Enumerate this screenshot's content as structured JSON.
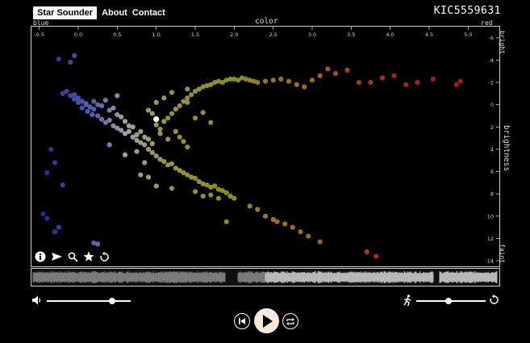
{
  "nav": {
    "brand": "Star Sounder",
    "about": "About",
    "contact": "Contact"
  },
  "star_id": "KIC5559631",
  "axes": {
    "x_title": "color",
    "x_left": "blue",
    "x_right": "red",
    "y_title": "brightness",
    "y_top": "bright",
    "y_bottom": "faint",
    "x_ticks": [
      "-0.5",
      "0.0",
      "0.5",
      "1.0",
      "1.5",
      "2.0",
      "2.5",
      "3.0",
      "3.5",
      "4.0",
      "4.5",
      "5.0"
    ],
    "y_ticks": [
      "-6",
      "-4",
      "-2",
      "0",
      "2",
      "4",
      "6",
      "8",
      "10",
      "12",
      "14"
    ]
  },
  "chart_data": {
    "type": "scatter",
    "xlabel": "color",
    "ylabel": "brightness",
    "xlim": [
      -0.6,
      5.4
    ],
    "ylim": [
      -7,
      14.5
    ],
    "y_inverted": true,
    "highlight_point": {
      "x": 1.0,
      "y": 1.3
    },
    "points": [
      [
        -0.25,
        -4.1
      ],
      [
        -0.1,
        -3.8
      ],
      [
        -0.05,
        -4.4
      ],
      [
        -0.3,
        5.2
      ],
      [
        -0.4,
        6.1
      ],
      [
        -0.35,
        4.0
      ],
      [
        -0.2,
        7.2
      ],
      [
        -0.45,
        9.8
      ],
      [
        -0.3,
        11.4
      ],
      [
        -0.25,
        11.0
      ],
      [
        -0.4,
        10.2
      ],
      [
        0.2,
        12.4
      ],
      [
        0.25,
        12.5
      ],
      [
        -0.15,
        -1.2
      ],
      [
        -0.2,
        -1.0
      ],
      [
        -0.1,
        -0.8
      ],
      [
        -0.05,
        -0.5
      ],
      [
        0.0,
        -0.6
      ],
      [
        0.05,
        -0.3
      ],
      [
        0.1,
        -0.1
      ],
      [
        0.15,
        0.2
      ],
      [
        0.2,
        0.4
      ],
      [
        0.1,
        0.0
      ],
      [
        0.0,
        -0.2
      ],
      [
        -0.05,
        -0.9
      ],
      [
        0.05,
        0.3
      ],
      [
        0.12,
        0.6
      ],
      [
        0.18,
        0.9
      ],
      [
        0.25,
        1.0
      ],
      [
        0.3,
        1.3
      ],
      [
        0.35,
        1.6
      ],
      [
        0.4,
        1.4
      ],
      [
        0.45,
        1.9
      ],
      [
        0.5,
        2.1
      ],
      [
        0.55,
        2.3
      ],
      [
        0.6,
        2.6
      ],
      [
        0.65,
        2.4
      ],
      [
        0.7,
        2.9
      ],
      [
        0.75,
        3.2
      ],
      [
        0.8,
        3.4
      ],
      [
        0.85,
        3.6
      ],
      [
        0.9,
        4.0
      ],
      [
        0.95,
        4.3
      ],
      [
        1.0,
        4.6
      ],
      [
        1.05,
        4.9
      ],
      [
        1.1,
        5.1
      ],
      [
        1.15,
        5.4
      ],
      [
        1.2,
        5.3
      ],
      [
        1.25,
        5.7
      ],
      [
        1.3,
        5.9
      ],
      [
        1.35,
        6.1
      ],
      [
        1.4,
        6.3
      ],
      [
        1.45,
        6.5
      ],
      [
        1.5,
        6.6
      ],
      [
        1.55,
        6.9
      ],
      [
        1.6,
        7.1
      ],
      [
        1.65,
        7.2
      ],
      [
        1.7,
        7.4
      ],
      [
        1.75,
        7.3
      ],
      [
        1.8,
        7.6
      ],
      [
        1.85,
        7.7
      ],
      [
        1.9,
        7.9
      ],
      [
        1.95,
        8.2
      ],
      [
        2.0,
        8.4
      ],
      [
        2.2,
        9.1
      ],
      [
        2.3,
        9.4
      ],
      [
        2.4,
        10.0
      ],
      [
        2.5,
        10.3
      ],
      [
        2.55,
        10.5
      ],
      [
        2.65,
        10.7
      ],
      [
        2.75,
        11.0
      ],
      [
        2.85,
        11.4
      ],
      [
        2.95,
        11.8
      ],
      [
        3.1,
        12.3
      ],
      [
        3.7,
        13.2
      ],
      [
        3.82,
        13.6
      ],
      [
        0.2,
        -0.3
      ],
      [
        0.3,
        0.1
      ],
      [
        0.4,
        0.5
      ],
      [
        0.5,
        0.9
      ],
      [
        0.45,
        0.3
      ],
      [
        0.6,
        1.5
      ],
      [
        0.7,
        2.0
      ],
      [
        0.8,
        2.4
      ],
      [
        0.85,
        2.9
      ],
      [
        0.9,
        3.1
      ],
      [
        0.65,
        1.9
      ],
      [
        0.75,
        2.7
      ],
      [
        0.55,
        1.1
      ],
      [
        0.95,
        3.5
      ],
      [
        0.35,
        -0.4
      ],
      [
        0.25,
        0.0
      ],
      [
        0.5,
        -0.8
      ],
      [
        0.9,
        0.5
      ],
      [
        0.95,
        0.8
      ],
      [
        1.0,
        1.8
      ],
      [
        1.05,
        2.2
      ],
      [
        1.1,
        1.5
      ],
      [
        1.15,
        1.2
      ],
      [
        1.2,
        0.8
      ],
      [
        1.25,
        0.4
      ],
      [
        1.3,
        0.1
      ],
      [
        1.35,
        -0.3
      ],
      [
        1.4,
        -0.6
      ],
      [
        1.45,
        -0.9
      ],
      [
        1.5,
        -1.2
      ],
      [
        1.55,
        -1.4
      ],
      [
        1.6,
        -1.6
      ],
      [
        1.65,
        -1.7
      ],
      [
        1.7,
        -1.8
      ],
      [
        1.75,
        -2.0
      ],
      [
        1.8,
        -2.1
      ],
      [
        1.85,
        -2.0
      ],
      [
        1.9,
        -2.2
      ],
      [
        1.95,
        -2.3
      ],
      [
        2.0,
        -2.3
      ],
      [
        2.05,
        -2.2
      ],
      [
        2.1,
        -2.4
      ],
      [
        2.15,
        -2.3
      ],
      [
        2.2,
        -2.2
      ],
      [
        2.25,
        -2.1
      ],
      [
        2.3,
        -2.0
      ],
      [
        2.4,
        -2.1
      ],
      [
        2.5,
        -2.2
      ],
      [
        2.6,
        -2.3
      ],
      [
        2.7,
        -2.1
      ],
      [
        2.8,
        -1.8
      ],
      [
        2.9,
        -1.6
      ],
      [
        3.0,
        -2.2
      ],
      [
        3.1,
        -2.6
      ],
      [
        3.2,
        -3.2
      ],
      [
        3.3,
        -2.8
      ],
      [
        3.45,
        -3.1
      ],
      [
        3.6,
        -2.0
      ],
      [
        3.75,
        -2.0
      ],
      [
        3.9,
        -2.4
      ],
      [
        4.05,
        -2.6
      ],
      [
        4.2,
        -1.8
      ],
      [
        4.35,
        -2.0
      ],
      [
        4.55,
        -2.3
      ],
      [
        4.85,
        -1.8
      ],
      [
        4.9,
        -2.1
      ],
      [
        1.2,
        -1.1
      ],
      [
        1.1,
        -0.6
      ],
      [
        1.0,
        -0.2
      ],
      [
        1.4,
        -1.4
      ],
      [
        1.25,
        2.4
      ],
      [
        1.3,
        2.9
      ],
      [
        1.35,
        3.3
      ],
      [
        1.4,
        3.8
      ],
      [
        1.15,
        3.1
      ],
      [
        1.05,
        2.6
      ],
      [
        1.5,
        1.2
      ],
      [
        1.6,
        0.7
      ],
      [
        1.7,
        1.6
      ],
      [
        1.4,
        -0.2
      ],
      [
        0.4,
        3.6
      ],
      [
        0.6,
        4.5
      ],
      [
        0.75,
        4.2
      ],
      [
        0.85,
        5.2
      ],
      [
        0.9,
        6.5
      ],
      [
        1.0,
        7.3
      ],
      [
        1.2,
        7.5
      ],
      [
        1.5,
        7.8
      ],
      [
        1.7,
        8.1
      ],
      [
        1.8,
        8.4
      ],
      [
        1.6,
        8.2
      ],
      [
        1.9,
        10.5
      ],
      [
        0.8,
        6.3
      ]
    ]
  },
  "timeline": {
    "played_fraction": 0.5
  },
  "controls": {
    "volume_level": 0.78,
    "speed_level": 0.47
  },
  "icons": {
    "info": "info-icon",
    "send": "send-icon",
    "zoom": "zoom-icon",
    "star": "star-icon",
    "reset": "reset-icon",
    "volume": "volume-icon",
    "runner": "runner-icon",
    "prev": "skip-previous-icon",
    "play": "play-icon",
    "loop": "loop-icon"
  }
}
